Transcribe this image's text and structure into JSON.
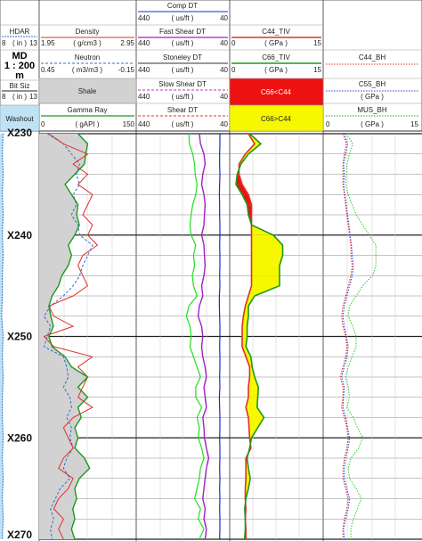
{
  "chart_data": {
    "type": "line",
    "title": "",
    "depth_axis": {
      "label": "MD",
      "scale": "1 : 200",
      "unit": "m",
      "ticks": [
        "X230",
        "X240",
        "X250",
        "X260",
        "X270"
      ],
      "range": [
        230,
        270
      ]
    },
    "headers": {
      "hdar": {
        "name": "HDAR",
        "min": "8",
        "unit": "( in )",
        "max": "13"
      },
      "bitsize": {
        "name": "Bit Siz",
        "min": "8",
        "unit": "( in )",
        "max": "13"
      },
      "washout": {
        "name": "Washout"
      },
      "density": {
        "name": "Density",
        "min": "1.95",
        "unit": "( g/cm3 )",
        "max": "2.95"
      },
      "neutron": {
        "name": "Neutron",
        "min": "0.45",
        "unit": "( m3/m3 )",
        "max": "-0.15"
      },
      "shale": {
        "name": "Shale"
      },
      "gamma": {
        "name": "Gamma Ray",
        "min": "0",
        "unit": "( gAPI )",
        "max": "150"
      },
      "comp_dt": {
        "name": "Comp DT",
        "min": "440",
        "unit": "( us/ft )",
        "max": "40"
      },
      "fast_shear": {
        "name": "Fast Shear DT",
        "min": "440",
        "unit": "( us/ft )",
        "max": "40"
      },
      "stoneley": {
        "name": "Stoneley DT",
        "min": "440",
        "unit": "( us/ft )",
        "max": "40"
      },
      "slow_shear": {
        "name": "Slow Shear DT",
        "min": "440",
        "unit": "( us/ft )",
        "max": "40"
      },
      "shear_dt": {
        "name": "Shear DT",
        "min": "440",
        "unit": "( us/ft )",
        "max": "40"
      },
      "c44_tiv": {
        "name": "C44_TIV",
        "min": "0",
        "unit": "( GPa )",
        "max": "15"
      },
      "c66_tiv": {
        "name": "C66_TIV",
        "min": "0",
        "unit": "( GPa )",
        "max": "15"
      },
      "c66_lt": {
        "name": "C66<C44"
      },
      "c66_gt": {
        "name": "C66>C44"
      },
      "c44_bh": {
        "name": "C44_BH"
      },
      "c55_bh": {
        "name": "C55_BH",
        "unit": "( GPa )"
      },
      "mus_bh": {
        "name": "MUS_BH",
        "min": "0",
        "unit": "( GPa )",
        "max": "15"
      }
    },
    "track1": {
      "depth": [
        230,
        232,
        234,
        236,
        238,
        240,
        242,
        244,
        246,
        248,
        250,
        252,
        254,
        256,
        258,
        260,
        262,
        264,
        266,
        268,
        270
      ],
      "hdar": [
        8.4,
        8.3,
        8.4,
        8.3,
        8.4,
        8.3,
        8.4,
        8.3,
        8.3,
        8.2,
        8.4,
        8.3,
        8.4,
        8.3,
        8.3,
        8.4,
        8.3,
        8.4,
        8.3,
        8.4,
        8.3
      ]
    },
    "track2": {
      "depth": [
        230,
        231,
        232,
        233,
        234,
        235,
        236,
        237,
        238,
        239,
        240,
        241,
        242,
        243,
        244,
        245,
        246,
        247,
        248,
        249,
        250,
        251,
        252,
        253,
        254,
        255,
        256,
        257,
        258,
        259,
        260,
        261,
        262,
        263,
        264,
        265,
        266,
        267,
        268,
        269,
        270
      ],
      "density": [
        2.05,
        2.2,
        2.45,
        2.3,
        2.45,
        2.35,
        2.5,
        2.45,
        2.4,
        2.5,
        2.45,
        2.55,
        2.4,
        2.35,
        2.4,
        2.45,
        2.3,
        2.05,
        2.1,
        2.3,
        2.0,
        2.1,
        2.5,
        2.35,
        2.45,
        2.4,
        2.35,
        2.5,
        2.3,
        2.2,
        2.25,
        2.3,
        2.2,
        2.15,
        2.3,
        2.25,
        2.15,
        2.1,
        2.2,
        2.15,
        2.2
      ],
      "neutron": [
        0.4,
        0.3,
        0.25,
        0.2,
        0.22,
        0.2,
        0.24,
        0.22,
        0.25,
        0.21,
        0.2,
        0.12,
        0.15,
        0.18,
        0.2,
        0.24,
        0.3,
        0.38,
        0.42,
        0.38,
        0.4,
        0.42,
        0.3,
        0.28,
        0.27,
        0.3,
        0.26,
        0.25,
        0.28,
        0.25,
        0.26,
        0.24,
        0.28,
        0.3,
        0.26,
        0.32,
        0.35,
        0.38,
        0.36,
        0.38,
        0.37
      ],
      "gamma": [
        60,
        75,
        72,
        70,
        55,
        40,
        50,
        60,
        58,
        62,
        55,
        45,
        50,
        45,
        35,
        30,
        20,
        15,
        18,
        22,
        15,
        20,
        40,
        50,
        75,
        60,
        75,
        60,
        65,
        55,
        60,
        55,
        70,
        78,
        62,
        55,
        58,
        52,
        55,
        50,
        55
      ]
    },
    "track3": {
      "depth": [
        230,
        231,
        232,
        233,
        234,
        235,
        236,
        237,
        238,
        239,
        240,
        241,
        242,
        243,
        244,
        245,
        246,
        247,
        248,
        249,
        250,
        251,
        252,
        253,
        254,
        255,
        256,
        257,
        258,
        259,
        260,
        261,
        262,
        263,
        264,
        265,
        266,
        267,
        268,
        269,
        270
      ],
      "comp_dt": [
        82,
        82,
        83,
        83,
        82,
        83,
        84,
        83,
        83,
        82,
        82,
        83,
        82,
        82,
        83,
        82,
        84,
        84,
        83,
        82,
        82,
        83,
        82,
        82,
        83,
        82,
        84,
        83,
        82,
        82,
        83,
        82,
        82,
        83,
        82,
        83,
        82,
        83,
        82,
        82,
        83
      ],
      "fast_shear": [
        170,
        165,
        150,
        145,
        155,
        160,
        150,
        145,
        148,
        150,
        160,
        150,
        148,
        145,
        150,
        160,
        155,
        170,
        175,
        160,
        155,
        160,
        155,
        145,
        140,
        150,
        145,
        140,
        155,
        150,
        148,
        140,
        130,
        140,
        145,
        150,
        155,
        145,
        150,
        140,
        145
      ],
      "shear_dt": [
        215,
        212,
        198,
        190,
        188,
        180,
        185,
        198,
        205,
        210,
        205,
        185,
        195,
        190,
        200,
        195,
        180,
        215,
        225,
        210,
        205,
        210,
        195,
        180,
        165,
        185,
        185,
        160,
        180,
        170,
        175,
        160,
        150,
        165,
        170,
        180,
        190,
        165,
        175,
        150,
        170
      ]
    },
    "track4": {
      "depth": [
        230,
        231,
        232,
        233,
        234,
        235,
        236,
        237,
        238,
        239,
        240,
        241,
        242,
        243,
        244,
        245,
        246,
        247,
        248,
        249,
        250,
        251,
        252,
        253,
        254,
        255,
        256,
        257,
        258,
        259,
        260,
        261,
        262,
        263,
        264,
        265,
        266,
        267,
        268,
        269,
        270
      ],
      "c44_tiv": [
        3.0,
        4.0,
        2.5,
        1.5,
        1.5,
        2.0,
        3.0,
        3.5,
        3.5,
        3.5,
        3.5,
        3.5,
        3.5,
        3.5,
        3.5,
        3.5,
        3.0,
        2.5,
        2.2,
        2.0,
        2.0,
        2.0,
        2.6,
        3.2,
        3.2,
        3.0,
        3.0,
        2.6,
        3.0,
        3.1,
        3.2,
        3.4,
        2.6,
        2.6,
        2.6,
        2.5,
        2.5,
        2.6,
        2.5,
        2.6,
        2.6
      ],
      "c66_tiv": [
        3.2,
        5.0,
        3.0,
        1.8,
        1.2,
        1.0,
        2.0,
        2.8,
        3.0,
        3.5,
        7.0,
        8.5,
        8.5,
        8.0,
        8.0,
        8.0,
        4.0,
        3.0,
        3.0,
        2.8,
        2.8,
        2.6,
        3.4,
        3.6,
        4.0,
        4.6,
        4.5,
        4.4,
        5.5,
        4.5,
        3.5,
        3.2,
        2.8,
        3.0,
        3.3,
        3.0,
        2.6,
        2.4,
        2.5,
        2.5,
        2.4
      ]
    },
    "track5": {
      "depth": [
        230,
        231,
        232,
        233,
        234,
        235,
        236,
        237,
        238,
        239,
        240,
        241,
        242,
        243,
        244,
        245,
        246,
        247,
        248,
        249,
        250,
        251,
        252,
        253,
        254,
        255,
        256,
        257,
        258,
        259,
        260,
        261,
        262,
        263,
        264,
        265,
        266,
        267,
        268,
        269,
        270
      ],
      "c44_bh": [
        3.0,
        3.5,
        3.2,
        3.0,
        3.0,
        3.0,
        3.2,
        3.4,
        3.6,
        3.8,
        4.0,
        4.2,
        4.2,
        4.4,
        4.2,
        3.8,
        3.4,
        3.0,
        2.8,
        3.0,
        3.4,
        3.6,
        3.4,
        3.0,
        2.6,
        3.0,
        3.0,
        2.8,
        3.2,
        3.6,
        3.8,
        3.6,
        3.2,
        3.0,
        3.0,
        3.4,
        3.8,
        3.6,
        3.2,
        3.0,
        3.0
      ],
      "c55_bh": [
        3.2,
        3.7,
        3.4,
        3.1,
        3.2,
        3.1,
        3.3,
        3.5,
        3.7,
        3.9,
        4.1,
        4.3,
        4.4,
        4.6,
        4.4,
        4.0,
        3.6,
        3.2,
        3.0,
        3.2,
        3.5,
        3.8,
        3.6,
        3.2,
        2.8,
        3.2,
        3.1,
        3.0,
        3.4,
        3.7,
        4.0,
        3.8,
        3.4,
        3.2,
        3.2,
        3.6,
        4.0,
        3.8,
        3.4,
        3.1,
        3.2
      ],
      "mus_bh": [
        3.5,
        4.5,
        4.0,
        3.6,
        3.5,
        3.4,
        3.8,
        4.4,
        5.0,
        6.0,
        7.0,
        8.0,
        8.0,
        8.0,
        7.5,
        6.0,
        5.0,
        4.0,
        3.8,
        4.5,
        5.0,
        5.0,
        4.4,
        3.8,
        3.4,
        3.8,
        4.0,
        3.6,
        4.6,
        5.2,
        6.0,
        5.4,
        4.2,
        3.8,
        4.0,
        5.0,
        5.8,
        5.2,
        4.6,
        4.2,
        4.2
      ]
    }
  }
}
